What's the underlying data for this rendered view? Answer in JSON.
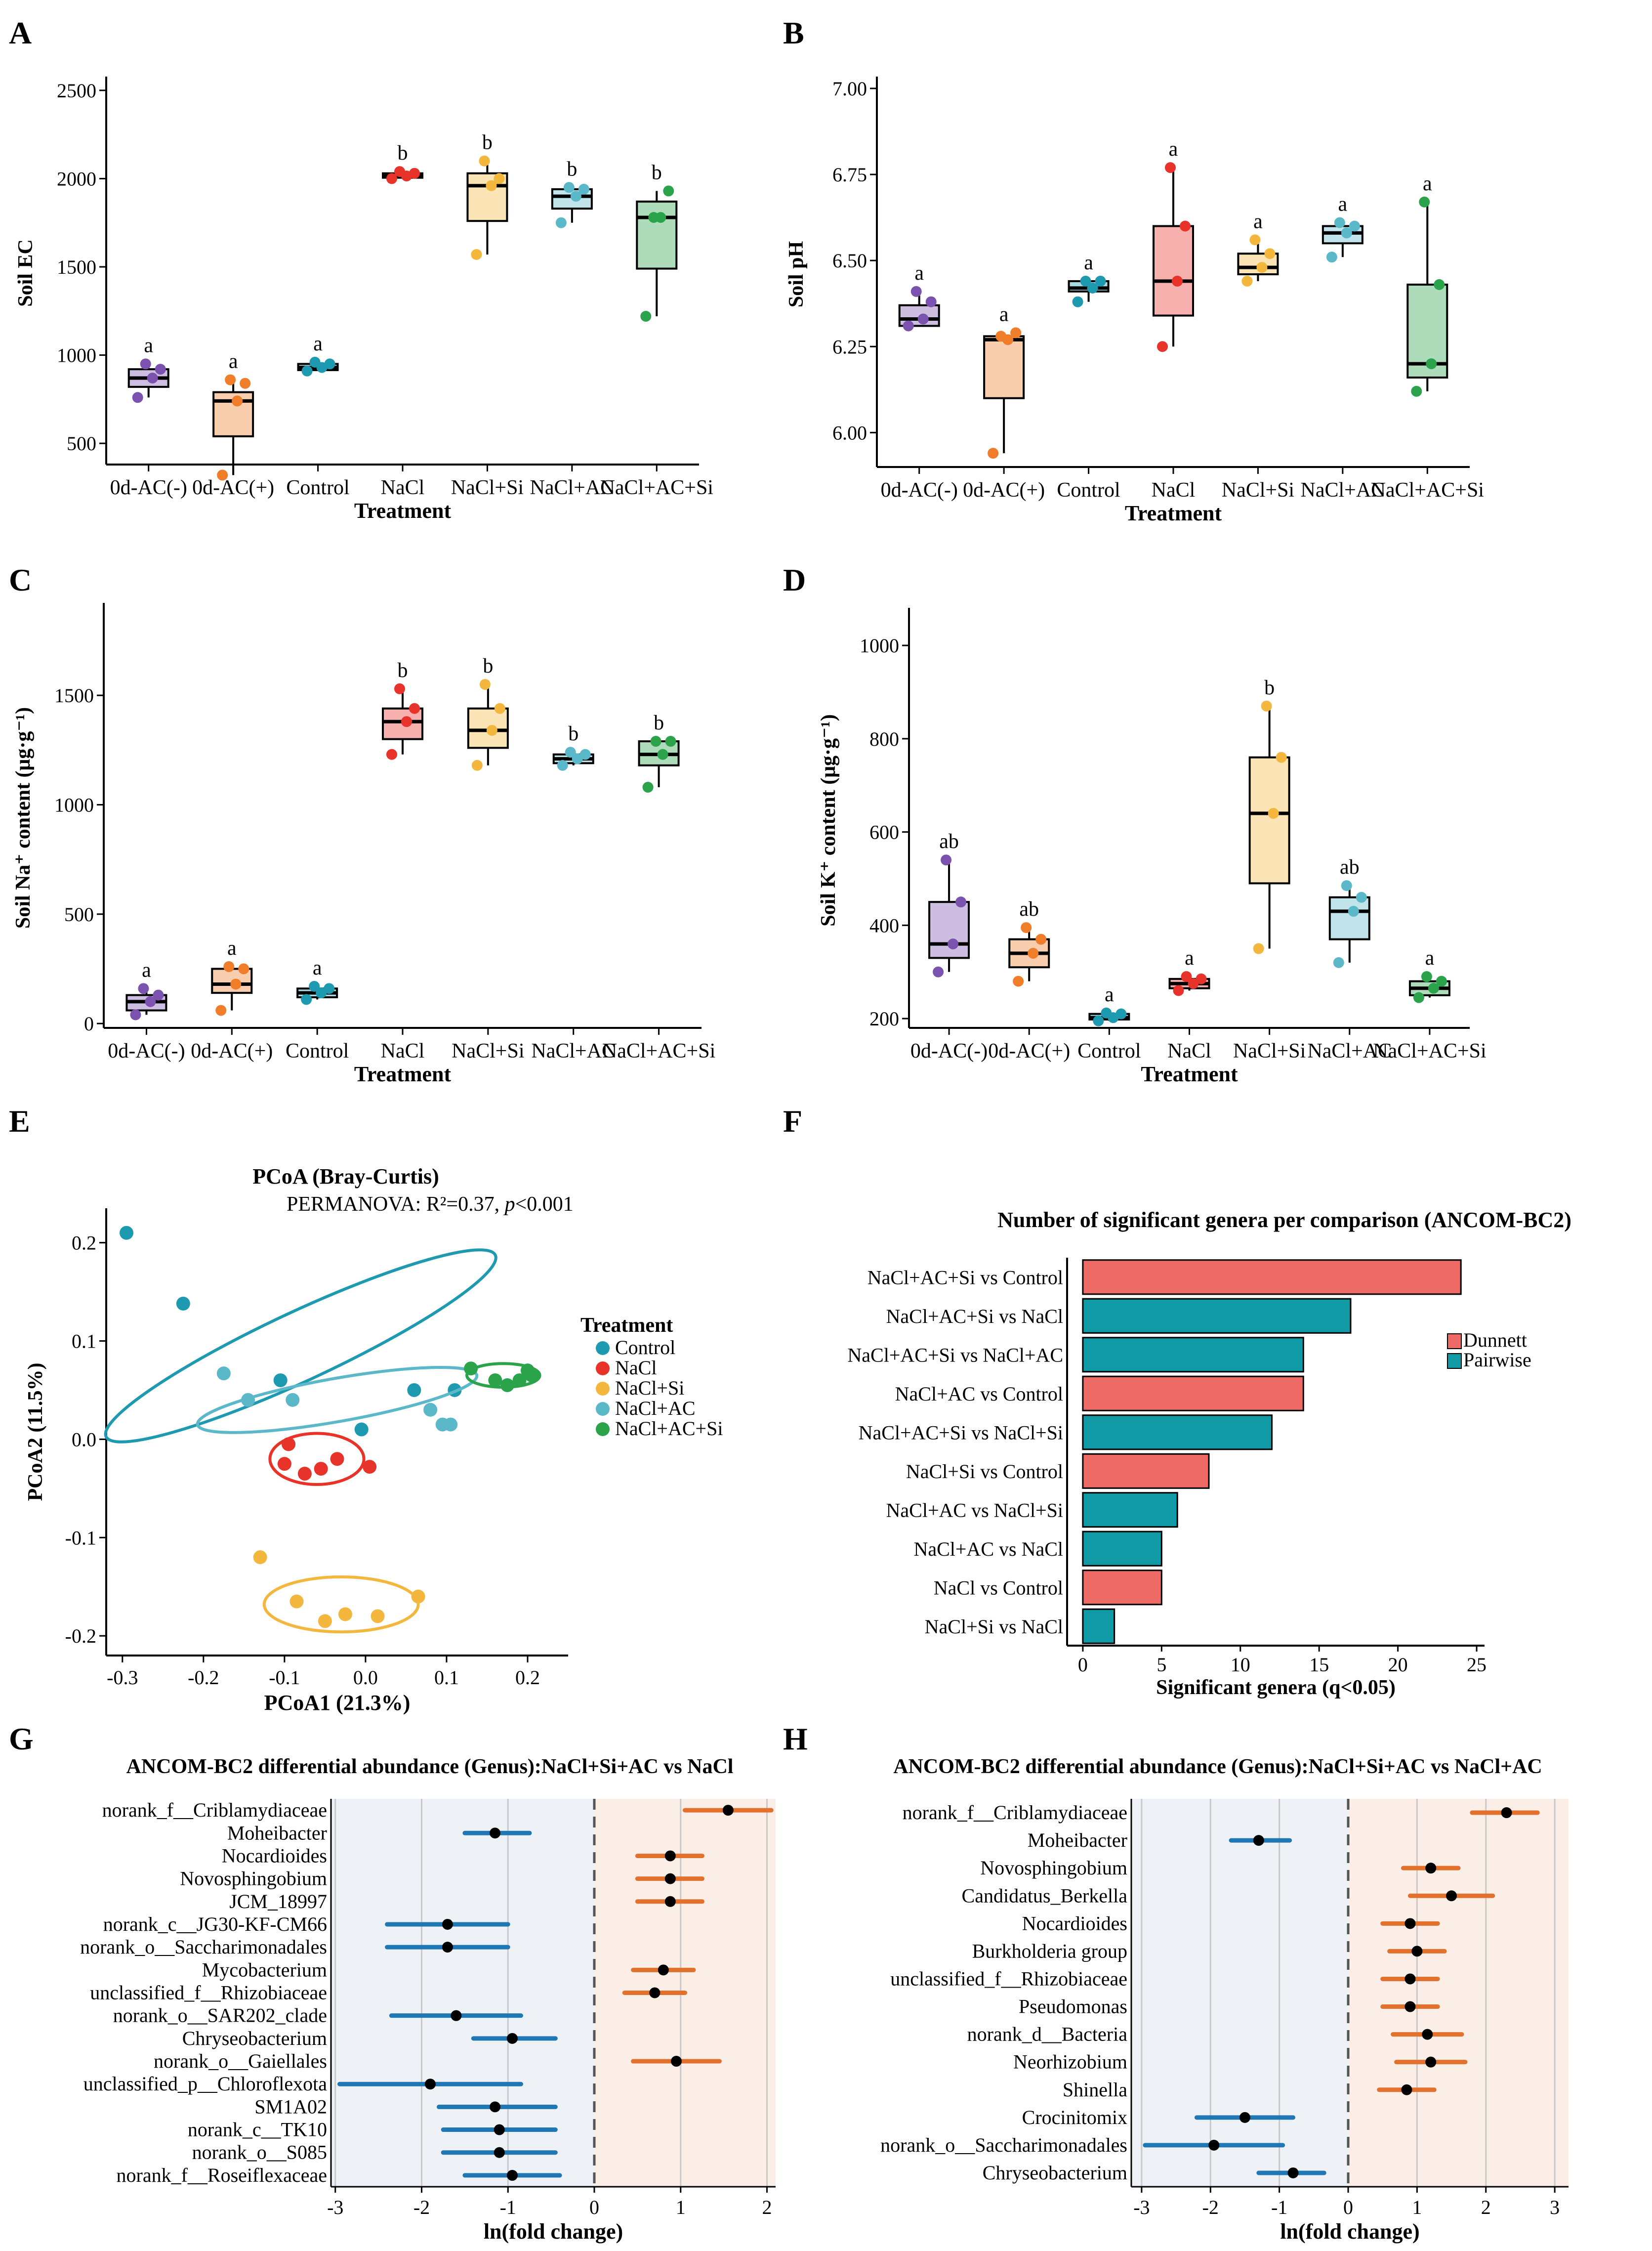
{
  "colors": {
    "0d-AC(-)": "#7b52ae",
    "0d-AC(+)": "#ef7d2a",
    "Control": "#1e9ab0",
    "NaCl": "#e8332a",
    "NaCl+Si": "#f4b73d",
    "NaCl+AC": "#5ab8c9",
    "NaCl+AC+Si": "#2aa34a",
    "dunnett": "#ee6a66",
    "pairwise": "#0f9aa6",
    "neg_effect": "#1f77b4",
    "pos_effect": "#e1712c"
  },
  "charts": [
    {
      "key": "A",
      "panel": "A",
      "type": "box",
      "title": "",
      "xlabel": "Treatment",
      "ylabel": "Soil EC",
      "categories": [
        "0d-AC(-)",
        "0d-AC(+)",
        "Control",
        "NaCl",
        "NaCl+Si",
        "NaCl+AC",
        "NaCl+AC+Si"
      ],
      "ylim": [
        380,
        2550
      ],
      "yticks": [
        500,
        1000,
        1500,
        2000,
        2500
      ],
      "boxes": [
        {
          "min": 760,
          "q1": 820,
          "median": 870,
          "q3": 920,
          "max": 950,
          "points": [
            760,
            870,
            920,
            950
          ],
          "letter": "a"
        },
        {
          "min": 320,
          "q1": 540,
          "median": 740,
          "q3": 790,
          "max": 860,
          "points": [
            320,
            740,
            840,
            860
          ],
          "letter": "a"
        },
        {
          "min": 910,
          "q1": 915,
          "median": 930,
          "q3": 950,
          "max": 960,
          "points": [
            910,
            930,
            950,
            960
          ],
          "letter": "a"
        },
        {
          "min": 2000,
          "q1": 2005,
          "median": 2015,
          "q3": 2030,
          "max": 2040,
          "points": [
            2000,
            2015,
            2030,
            2040
          ],
          "letter": "b"
        },
        {
          "min": 1570,
          "q1": 1760,
          "median": 1960,
          "q3": 2030,
          "max": 2100,
          "points": [
            1570,
            1960,
            2000,
            2100
          ],
          "letter": "b"
        },
        {
          "min": 1750,
          "q1": 1830,
          "median": 1900,
          "q3": 1940,
          "max": 1950,
          "points": [
            1750,
            1900,
            1940,
            1950
          ],
          "letter": "b"
        },
        {
          "min": 1220,
          "q1": 1490,
          "median": 1780,
          "q3": 1870,
          "max": 1930,
          "points": [
            1220,
            1780,
            1930,
            1780
          ],
          "letter": "b"
        }
      ]
    },
    {
      "key": "B",
      "panel": "B",
      "type": "box",
      "title": "",
      "xlabel": "Treatment",
      "ylabel": "Soil pH",
      "categories": [
        "0d-AC(-)",
        "0d-AC(+)",
        "Control",
        "NaCl",
        "NaCl+Si",
        "NaCl+AC",
        "NaCl+AC+Si"
      ],
      "ylim": [
        5.9,
        7.02
      ],
      "yticks": [
        6.0,
        6.25,
        6.5,
        6.75,
        7.0
      ],
      "tick_format": "2",
      "boxes": [
        {
          "min": 6.31,
          "q1": 6.31,
          "median": 6.33,
          "q3": 6.37,
          "max": 6.41,
          "points": [
            6.31,
            6.33,
            6.38,
            6.41
          ],
          "letter": "a"
        },
        {
          "min": 5.94,
          "q1": 6.1,
          "median": 6.27,
          "q3": 6.28,
          "max": 6.29,
          "points": [
            5.94,
            6.27,
            6.29,
            6.28
          ],
          "letter": "a"
        },
        {
          "min": 6.38,
          "q1": 6.41,
          "median": 6.42,
          "q3": 6.44,
          "max": 6.44,
          "points": [
            6.38,
            6.42,
            6.44,
            6.44
          ],
          "letter": "a"
        },
        {
          "min": 6.25,
          "q1": 6.34,
          "median": 6.44,
          "q3": 6.6,
          "max": 6.77,
          "points": [
            6.25,
            6.44,
            6.6,
            6.77
          ],
          "letter": "a"
        },
        {
          "min": 6.44,
          "q1": 6.46,
          "median": 6.48,
          "q3": 6.52,
          "max": 6.56,
          "points": [
            6.44,
            6.48,
            6.52,
            6.56
          ],
          "letter": "a"
        },
        {
          "min": 6.51,
          "q1": 6.55,
          "median": 6.58,
          "q3": 6.6,
          "max": 6.61,
          "points": [
            6.51,
            6.58,
            6.6,
            6.61
          ],
          "letter": "a"
        },
        {
          "min": 6.12,
          "q1": 6.16,
          "median": 6.2,
          "q3": 6.43,
          "max": 6.67,
          "points": [
            6.12,
            6.2,
            6.43,
            6.67
          ],
          "letter": "a"
        }
      ]
    },
    {
      "key": "C",
      "panel": "C",
      "type": "box",
      "title": "",
      "xlabel": "Treatment",
      "ylabel": "Soil Na⁺ content (μg·g⁻¹)",
      "categories": [
        "0d-AC(-)",
        "0d-AC(+)",
        "Control",
        "NaCl",
        "NaCl+Si",
        "NaCl+AC",
        "NaCl+AC+Si"
      ],
      "ylim": [
        -20,
        1900
      ],
      "yticks": [
        0,
        500,
        1000,
        1500
      ],
      "boxes": [
        {
          "min": 40,
          "q1": 60,
          "median": 100,
          "q3": 130,
          "max": 160,
          "points": [
            40,
            100,
            130,
            160
          ],
          "letter": "a"
        },
        {
          "min": 60,
          "q1": 140,
          "median": 180,
          "q3": 250,
          "max": 260,
          "points": [
            60,
            180,
            250,
            260
          ],
          "letter": "a"
        },
        {
          "min": 110,
          "q1": 120,
          "median": 140,
          "q3": 160,
          "max": 170,
          "points": [
            110,
            140,
            160,
            170
          ],
          "letter": "a"
        },
        {
          "min": 1230,
          "q1": 1300,
          "median": 1380,
          "q3": 1440,
          "max": 1530,
          "points": [
            1230,
            1380,
            1440,
            1530
          ],
          "letter": "b"
        },
        {
          "min": 1180,
          "q1": 1260,
          "median": 1340,
          "q3": 1440,
          "max": 1550,
          "points": [
            1180,
            1340,
            1440,
            1550
          ],
          "letter": "b"
        },
        {
          "min": 1180,
          "q1": 1190,
          "median": 1210,
          "q3": 1230,
          "max": 1240,
          "points": [
            1180,
            1210,
            1230,
            1240
          ],
          "letter": "b"
        },
        {
          "min": 1080,
          "q1": 1180,
          "median": 1230,
          "q3": 1290,
          "max": 1290,
          "points": [
            1080,
            1230,
            1290,
            1290
          ],
          "letter": "b"
        }
      ]
    },
    {
      "key": "D",
      "panel": "D",
      "type": "box",
      "title": "",
      "xlabel": "Treatment",
      "ylabel": "Soil K⁺ content (μg·g⁻¹)",
      "categories": [
        "0d-AC(-)",
        "0d-AC(+)",
        "Control",
        "NaCl",
        "NaCl+Si",
        "NaCl+AC",
        "NaCl+AC+Si"
      ],
      "ylim": [
        180,
        1070
      ],
      "yticks": [
        200,
        400,
        600,
        800,
        1000
      ],
      "boxes": [
        {
          "min": 300,
          "q1": 330,
          "median": 360,
          "q3": 450,
          "max": 540,
          "points": [
            300,
            360,
            450,
            540
          ],
          "letter": "ab"
        },
        {
          "min": 280,
          "q1": 310,
          "median": 340,
          "q3": 370,
          "max": 395,
          "points": [
            280,
            340,
            370,
            395
          ],
          "letter": "ab"
        },
        {
          "min": 195,
          "q1": 198,
          "median": 202,
          "q3": 210,
          "max": 212,
          "points": [
            195,
            202,
            210,
            212
          ],
          "letter": "a"
        },
        {
          "min": 260,
          "q1": 265,
          "median": 275,
          "q3": 285,
          "max": 290,
          "points": [
            260,
            275,
            285,
            290
          ],
          "letter": "a"
        },
        {
          "min": 350,
          "q1": 490,
          "median": 640,
          "q3": 760,
          "max": 870,
          "points": [
            350,
            640,
            760,
            870
          ],
          "letter": "b"
        },
        {
          "min": 320,
          "q1": 370,
          "median": 430,
          "q3": 460,
          "max": 485,
          "points": [
            320,
            430,
            460,
            485
          ],
          "letter": "ab"
        },
        {
          "min": 245,
          "q1": 250,
          "median": 265,
          "q3": 280,
          "max": 290,
          "points": [
            245,
            265,
            280,
            290
          ],
          "letter": "a"
        }
      ]
    },
    {
      "key": "E",
      "panel": "E",
      "type": "scatter",
      "title": "PCoA (Bray-Curtis)",
      "subtitle_prefix": "PERMANOVA: R²=0.37, ",
      "subtitle_p": "p",
      "subtitle_suffix": "<0.001",
      "xlabel": "PCoA1 (21.3%)",
      "ylabel": "PCoA2 (11.5%)",
      "xlim": [
        -0.32,
        0.25
      ],
      "ylim": [
        -0.22,
        0.235
      ],
      "xticks": [
        -0.3,
        -0.2,
        -0.1,
        0.0,
        0.1,
        0.2
      ],
      "yticks": [
        -0.2,
        -0.1,
        0.0,
        0.1,
        0.2
      ],
      "legend_title": "Treatment",
      "groups": [
        {
          "name": "Control",
          "points": [
            [
              -0.295,
              0.21
            ],
            [
              -0.225,
              0.138
            ],
            [
              -0.105,
              0.06
            ],
            [
              0.06,
              0.05
            ],
            [
              0.11,
              0.05
            ],
            [
              -0.005,
              0.01
            ]
          ],
          "ellipse": {
            "cx": -0.08,
            "cy": 0.095,
            "rx": 0.265,
            "ry": 0.035,
            "angle": -25
          }
        },
        {
          "name": "NaCl",
          "points": [
            [
              -0.1,
              -0.025
            ],
            [
              -0.075,
              -0.035
            ],
            [
              -0.055,
              -0.03
            ],
            [
              -0.035,
              -0.02
            ],
            [
              0.005,
              -0.028
            ],
            [
              -0.095,
              -0.005
            ]
          ],
          "ellipse": {
            "cx": -0.06,
            "cy": -0.02,
            "rx": 0.058,
            "ry": 0.026,
            "angle": 0
          }
        },
        {
          "name": "NaCl+Si",
          "points": [
            [
              -0.13,
              -0.12
            ],
            [
              -0.085,
              -0.165
            ],
            [
              -0.05,
              -0.185
            ],
            [
              -0.025,
              -0.178
            ],
            [
              0.015,
              -0.18
            ],
            [
              0.065,
              -0.16
            ]
          ],
          "ellipse": {
            "cx": -0.03,
            "cy": -0.168,
            "rx": 0.095,
            "ry": 0.028,
            "angle": 0
          }
        },
        {
          "name": "NaCl+AC",
          "points": [
            [
              -0.175,
              0.067
            ],
            [
              -0.145,
              0.04
            ],
            [
              -0.09,
              0.04
            ],
            [
              0.08,
              0.03
            ],
            [
              0.095,
              0.015
            ],
            [
              0.105,
              0.015
            ]
          ],
          "ellipse": {
            "cx": -0.035,
            "cy": 0.04,
            "rx": 0.175,
            "ry": 0.022,
            "angle": -10
          }
        },
        {
          "name": "NaCl+AC+Si",
          "points": [
            [
              0.13,
              0.072
            ],
            [
              0.16,
              0.06
            ],
            [
              0.175,
              0.055
            ],
            [
              0.19,
              0.06
            ],
            [
              0.2,
              0.07
            ],
            [
              0.205,
              0.065
            ]
          ],
          "ellipse": {
            "cx": 0.17,
            "cy": 0.065,
            "rx": 0.045,
            "ry": 0.012,
            "angle": 0
          }
        }
      ]
    },
    {
      "key": "F",
      "panel": "F",
      "type": "hbar",
      "title": "Number of significant genera per comparison (ANCOM-BC2)",
      "xlabel": "Significant genera (q<0.05)",
      "ylabel": "",
      "xlim": [
        -1,
        25.5
      ],
      "xticks": [
        0,
        5,
        10,
        15,
        20,
        25
      ],
      "legend": [
        "Dunnett",
        "Pairwise"
      ],
      "bars": [
        {
          "label": "NaCl+AC+Si vs Control",
          "value": 24,
          "type": "Dunnett"
        },
        {
          "label": "NaCl+AC+Si vs NaCl",
          "value": 17,
          "type": "Pairwise"
        },
        {
          "label": "NaCl+AC+Si vs NaCl+AC",
          "value": 14,
          "type": "Pairwise"
        },
        {
          "label": "NaCl+AC vs Control",
          "value": 14,
          "type": "Dunnett"
        },
        {
          "label": "NaCl+AC+Si vs NaCl+Si",
          "value": 12,
          "type": "Pairwise"
        },
        {
          "label": "NaCl+Si vs Control",
          "value": 8,
          "type": "Dunnett"
        },
        {
          "label": "NaCl+AC vs NaCl+Si",
          "value": 6,
          "type": "Pairwise"
        },
        {
          "label": "NaCl+AC vs NaCl",
          "value": 5,
          "type": "Pairwise"
        },
        {
          "label": "NaCl vs Control",
          "value": 5,
          "type": "Dunnett"
        },
        {
          "label": "NaCl+Si vs NaCl",
          "value": 2,
          "type": "Pairwise"
        }
      ]
    },
    {
      "key": "G",
      "panel": "G",
      "type": "forest",
      "title": "ANCOM-BC2 differential abundance (Genus):NaCl+Si+AC vs NaCl",
      "xlabel": "ln(fold change)",
      "xlim": [
        -3.05,
        2.1
      ],
      "xticks": [
        -3,
        -2,
        -1,
        0,
        1,
        2
      ],
      "items": [
        {
          "label": "norank_f__Criblamydiaceae",
          "est": 1.55,
          "lo": 1.05,
          "hi": 2.05
        },
        {
          "label": "Moheibacter",
          "est": -1.15,
          "lo": -1.5,
          "hi": -0.75
        },
        {
          "label": "Nocardioides",
          "est": 0.88,
          "lo": 0.5,
          "hi": 1.25
        },
        {
          "label": "Novosphingobium",
          "est": 0.88,
          "lo": 0.5,
          "hi": 1.25
        },
        {
          "label": "JCM_18997",
          "est": 0.88,
          "lo": 0.5,
          "hi": 1.25
        },
        {
          "label": "norank_c__JG30-KF-CM66",
          "est": -1.7,
          "lo": -2.4,
          "hi": -1.0
        },
        {
          "label": "norank_o__Saccharimonadales",
          "est": -1.7,
          "lo": -2.4,
          "hi": -1.0
        },
        {
          "label": "Mycobacterium",
          "est": 0.8,
          "lo": 0.45,
          "hi": 1.15
        },
        {
          "label": "unclassified_f__Rhizobiaceae",
          "est": 0.7,
          "lo": 0.35,
          "hi": 1.05
        },
        {
          "label": "norank_o__SAR202_clade",
          "est": -1.6,
          "lo": -2.35,
          "hi": -0.85
        },
        {
          "label": "Chryseobacterium",
          "est": -0.95,
          "lo": -1.4,
          "hi": -0.45
        },
        {
          "label": "norank_o__Gaiellales",
          "est": 0.95,
          "lo": 0.45,
          "hi": 1.45
        },
        {
          "label": "unclassified_p__Chloroflexota",
          "est": -1.9,
          "lo": -2.95,
          "hi": -0.85
        },
        {
          "label": "SM1A02",
          "est": -1.15,
          "lo": -1.8,
          "hi": -0.45
        },
        {
          "label": "norank_c__TK10",
          "est": -1.1,
          "lo": -1.75,
          "hi": -0.45
        },
        {
          "label": "norank_o__S085",
          "est": -1.1,
          "lo": -1.75,
          "hi": -0.45
        },
        {
          "label": "norank_f__Roseiflexaceae",
          "est": -0.95,
          "lo": -1.5,
          "hi": -0.4
        }
      ]
    },
    {
      "key": "H",
      "panel": "H",
      "type": "forest",
      "title": "ANCOM-BC2 differential abundance (Genus):NaCl+Si+AC vs NaCl+AC",
      "xlabel": "ln(fold change)",
      "xlim": [
        -3.15,
        3.2
      ],
      "xticks": [
        -3,
        -2,
        -1,
        0,
        1,
        2,
        3
      ],
      "items": [
        {
          "label": "norank_f__Criblamydiaceae",
          "est": 2.3,
          "lo": 1.8,
          "hi": 2.75
        },
        {
          "label": "Moheibacter",
          "est": -1.3,
          "lo": -1.7,
          "hi": -0.85
        },
        {
          "label": "Novosphingobium",
          "est": 1.2,
          "lo": 0.8,
          "hi": 1.6
        },
        {
          "label": "Candidatus_Berkella",
          "est": 1.5,
          "lo": 0.9,
          "hi": 2.1
        },
        {
          "label": "Nocardioides",
          "est": 0.9,
          "lo": 0.5,
          "hi": 1.3
        },
        {
          "label": "Burkholderia group",
          "est": 1.0,
          "lo": 0.6,
          "hi": 1.4
        },
        {
          "label": "unclassified_f__Rhizobiaceae",
          "est": 0.9,
          "lo": 0.5,
          "hi": 1.3
        },
        {
          "label": "Pseudomonas",
          "est": 0.9,
          "lo": 0.5,
          "hi": 1.3
        },
        {
          "label": "norank_d__Bacteria",
          "est": 1.15,
          "lo": 0.65,
          "hi": 1.65
        },
        {
          "label": "Neorhizobium",
          "est": 1.2,
          "lo": 0.7,
          "hi": 1.7
        },
        {
          "label": "Shinella",
          "est": 0.85,
          "lo": 0.45,
          "hi": 1.25
        },
        {
          "label": "Crocinitomix",
          "est": -1.5,
          "lo": -2.2,
          "hi": -0.8
        },
        {
          "label": "norank_o__Saccharimonadales",
          "est": -1.95,
          "lo": -2.95,
          "hi": -0.95
        },
        {
          "label": "Chryseobacterium",
          "est": -0.8,
          "lo": -1.3,
          "hi": -0.35
        }
      ]
    }
  ]
}
